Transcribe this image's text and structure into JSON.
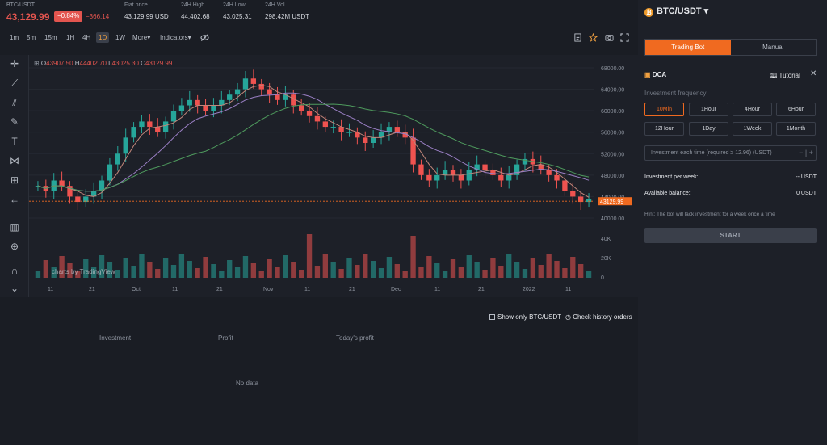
{
  "header": {
    "pair": "BTC/USDT",
    "price": "43,129.99",
    "change_pct": "−0.84%",
    "change_abs": "−366.14",
    "stats": [
      {
        "label": "Fiat price",
        "value": "43,129.99 USD"
      },
      {
        "label": "24H High",
        "value": "44,402.68"
      },
      {
        "label": "24H Low",
        "value": "43,025.31"
      },
      {
        "label": "24H Vol",
        "value": "298.42M USDT"
      }
    ]
  },
  "toolbar": {
    "timeframes": [
      "1m",
      "5m",
      "15m",
      "1H",
      "4H",
      "1D",
      "1W",
      "More▾"
    ],
    "active_timeframe": "1D",
    "indicators_label": "Indicators▾"
  },
  "chart": {
    "ohlc": {
      "o": "43907.50",
      "h": "44402.70",
      "l": "43025.30",
      "c": "43129.99"
    },
    "price_ticks": [
      "68000.00",
      "64000.00",
      "60000.00",
      "56000.00",
      "52000.00",
      "48000.00",
      "44000.00",
      "40000.00"
    ],
    "last_price_label": "43129.99",
    "volume_ticks": [
      "40K",
      "20K",
      "0"
    ],
    "x_ticks": [
      "11",
      "21",
      "Oct",
      "11",
      "21",
      "Nov",
      "11",
      "21",
      "Dec",
      "11",
      "21",
      "2022",
      "11"
    ],
    "watermark": "charts by TradingView",
    "colors": {
      "up": "#26a69a",
      "down": "#ef5350",
      "ma_fast": "#c1867a",
      "ma_mid": "#9a7fc4",
      "ma_slow": "#4e9a5d",
      "last_price": "#f06a20"
    }
  },
  "right_panel": {
    "pair": "BTC/USDT",
    "tabs": [
      "Trading Bot",
      "Manual"
    ],
    "active_tab": "Trading Bot",
    "dca_label": "DCA",
    "tutorial_label": "Tutorial",
    "frequency_label": "Investment frequency",
    "frequencies": [
      "10Min",
      "1Hour",
      "4Hour",
      "6Hour",
      "12Hour",
      "1Day",
      "1Week",
      "1Month"
    ],
    "active_frequency": "10Min",
    "amount_placeholder": "Investment each time (required ≥ 12.96) (USDT)",
    "per_week_label": "Investment per week:",
    "per_week_value": "-- USDT",
    "balance_label": "Available balance:",
    "balance_value": "0 USDT",
    "hint": "Hint: The bot will lack investment for a week once a time",
    "start_label": "START"
  },
  "bottom": {
    "show_only_label": "Show only BTC/USDT",
    "history_label": "Check history orders",
    "columns": [
      "Investment",
      "Profit",
      "Today's profit"
    ],
    "empty_label": "No data"
  }
}
